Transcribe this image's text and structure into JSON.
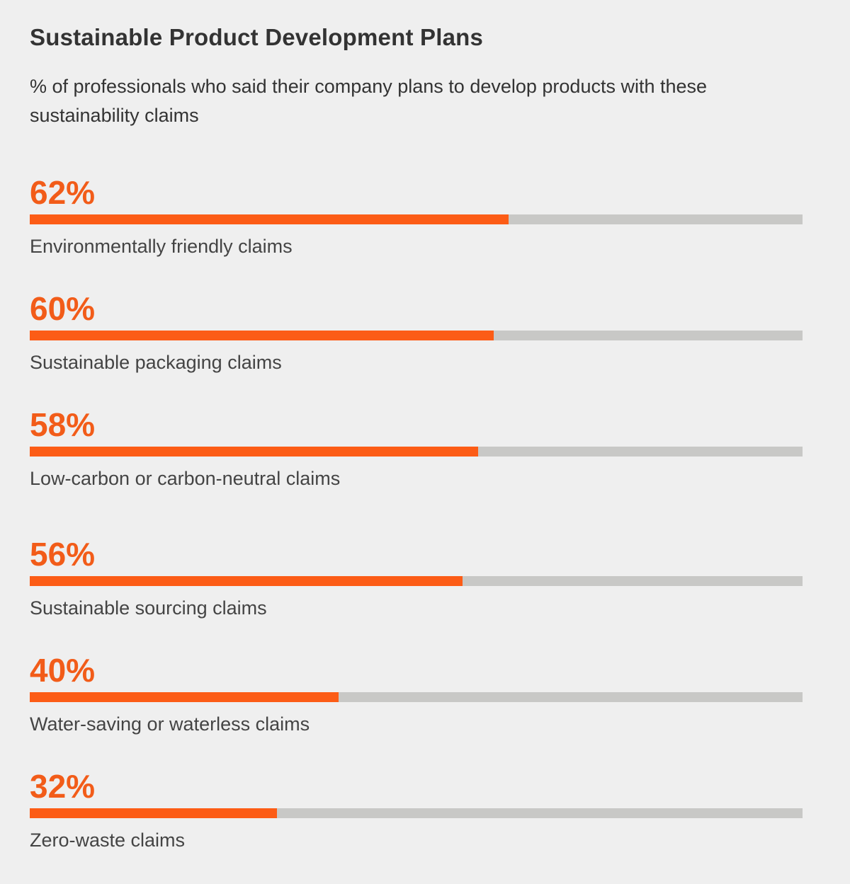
{
  "chart_data": {
    "type": "bar",
    "orientation": "horizontal",
    "title": "Sustainable Product Development Plans",
    "subtitle": "% of professionals who said their company plans to develop products with these sustainability claims",
    "value_unit": "%",
    "xlim": [
      0,
      100
    ],
    "grid": false,
    "colors": {
      "fill": "#fc5c16",
      "value_text": "#f25c19",
      "track": "#c8c8c6",
      "background": "#efefef"
    },
    "items": [
      {
        "value": 62,
        "value_label": "62%",
        "label": "Environmentally friendly claims"
      },
      {
        "value": 60,
        "value_label": "60%",
        "label": "Sustainable packaging claims"
      },
      {
        "value": 58,
        "value_label": "58%",
        "label": "Low-carbon or carbon-neutral claims"
      },
      {
        "value": 56,
        "value_label": "56%",
        "label": "Sustainable sourcing claims"
      },
      {
        "value": 40,
        "value_label": "40%",
        "label": "Water-saving or waterless claims"
      },
      {
        "value": 32,
        "value_label": "32%",
        "label": "Zero-waste claims"
      }
    ]
  }
}
